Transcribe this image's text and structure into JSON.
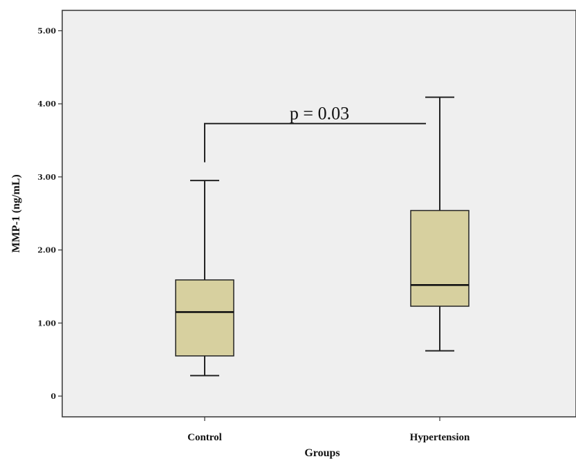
{
  "chart_data": {
    "type": "boxplot",
    "xlabel": "Groups",
    "ylabel": "MMP-1 (ng/mL)",
    "ylim": [
      -0.25,
      5.4
    ],
    "yticks": [
      0,
      1,
      2,
      3,
      4,
      5
    ],
    "ytick_labels": [
      "0",
      "1.00",
      "2.00",
      "3.00",
      "4.00",
      "5.00"
    ],
    "grid": false,
    "categories": [
      "Control",
      "Hypertension"
    ],
    "boxes": [
      {
        "category": "Control",
        "whisker_low": 0.28,
        "q1": 0.55,
        "median": 1.15,
        "q3": 1.59,
        "whisker_high": 2.95
      },
      {
        "category": "Hypertension",
        "whisker_low": 0.62,
        "q1": 1.23,
        "median": 1.52,
        "q3": 2.54,
        "whisker_high": 4.09
      }
    ],
    "annotation": {
      "text": "p = 0.03",
      "bracket_y": 3.73,
      "left_drop_y": 3.2
    },
    "colors": {
      "plot_background": "#efefef",
      "box_fill": "#d7d09f",
      "line": "#222222",
      "axis": "#333333"
    }
  }
}
